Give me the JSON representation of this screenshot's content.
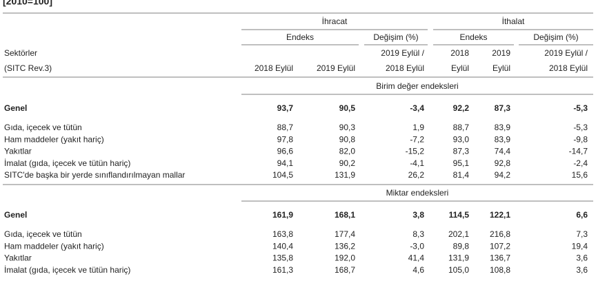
{
  "title": "[2010=100]",
  "groups": [
    "İhracat",
    "İthalat"
  ],
  "subgroups": [
    "Endeks",
    "Değişim (%)",
    "Endeks",
    "Değişim (%)"
  ],
  "stub": [
    "Sektörler",
    "(SITC Rev.3)"
  ],
  "columns": [
    [
      "2018 Eylül"
    ],
    [
      "2019 Eylül"
    ],
    [
      "2019 Eylül /",
      "2018 Eylül"
    ],
    [
      "2018",
      "Eylül"
    ],
    [
      "2019",
      "Eylül"
    ],
    [
      "2019 Eylül /",
      "2018 Eylül"
    ]
  ],
  "sections": [
    {
      "title": "Birim değer endeksleri",
      "rows": [
        {
          "label": "Genel",
          "values": [
            "93,7",
            "90,5",
            "-3,4",
            "92,2",
            "87,3",
            "-5,3"
          ]
        },
        {
          "label": "Gıda, içecek ve tütün",
          "values": [
            "88,7",
            "90,3",
            "1,9",
            "88,7",
            "83,9",
            "-5,3"
          ]
        },
        {
          "label": "Ham maddeler (yakıt hariç)",
          "values": [
            "97,8",
            "90,8",
            "-7,2",
            "93,0",
            "83,9",
            "-9,8"
          ]
        },
        {
          "label": "Yakıtlar",
          "values": [
            "96,6",
            "82,0",
            "-15,2",
            "87,3",
            "74,4",
            "-14,7"
          ]
        },
        {
          "label": "İmalat (gıda, içecek ve tütün hariç)",
          "values": [
            "94,1",
            "90,2",
            "-4,1",
            "95,1",
            "92,8",
            "-2,4"
          ]
        },
        {
          "label": "SITC'de başka bir yerde sınıflandırılmayan mallar",
          "values": [
            "104,5",
            "131,9",
            "26,2",
            "81,4",
            "94,2",
            "15,6"
          ]
        }
      ]
    },
    {
      "title": "Miktar endeksleri",
      "rows": [
        {
          "label": "Genel",
          "values": [
            "161,9",
            "168,1",
            "3,8",
            "114,5",
            "122,1",
            "6,6"
          ]
        },
        {
          "label": "Gıda, içecek ve tütün",
          "values": [
            "163,8",
            "177,4",
            "8,3",
            "202,1",
            "216,8",
            "7,3"
          ]
        },
        {
          "label": "Ham maddeler (yakıt hariç)",
          "values": [
            "140,4",
            "136,2",
            "-3,0",
            "89,8",
            "107,2",
            "19,4"
          ]
        },
        {
          "label": "Yakıtlar",
          "values": [
            "135,8",
            "192,0",
            "41,4",
            "131,9",
            "136,7",
            "3,6"
          ]
        },
        {
          "label": "İmalat (gıda, içecek ve tütün hariç)",
          "values": [
            "161,3",
            "168,7",
            "4,6",
            "105,0",
            "108,8",
            "3,6"
          ]
        }
      ]
    }
  ]
}
